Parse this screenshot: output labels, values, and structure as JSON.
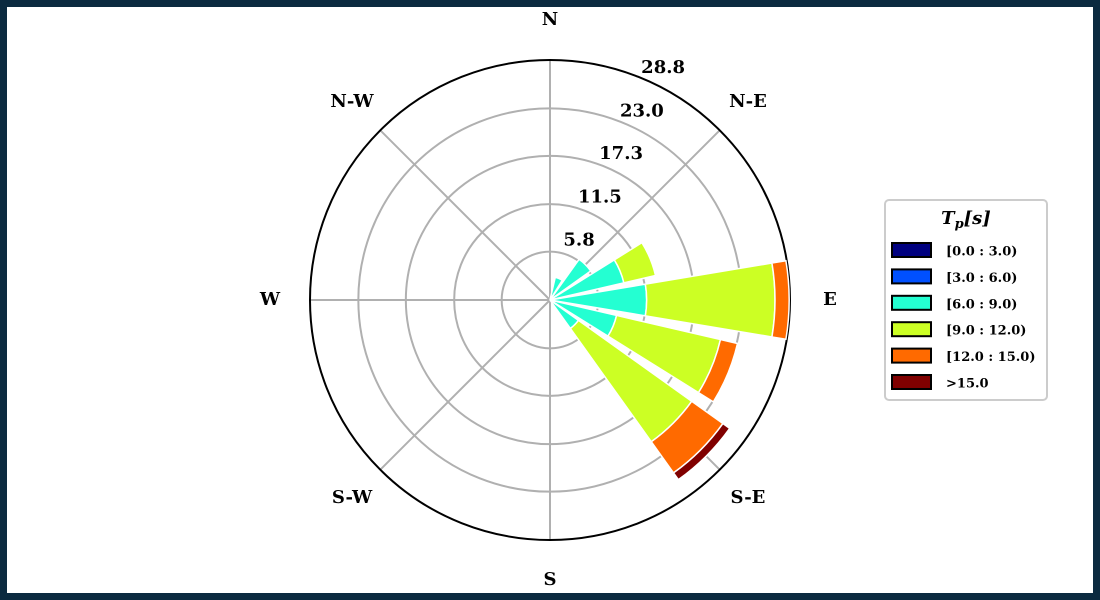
{
  "chart_data": {
    "type": "polar-stacked-bar",
    "categories": [
      "N",
      null,
      "N-E",
      null,
      "E",
      null,
      "S-E",
      null,
      "S",
      null,
      "S-W",
      null,
      "W",
      null,
      "N-W",
      null
    ],
    "ylim": [
      0,
      28.8
    ],
    "yticks": [
      5.8,
      11.5,
      17.3,
      {
        "value": 23.0,
        "label": "23.0"
      },
      28.8
    ],
    "grid": true,
    "legend_title": {
      "symbol": "T",
      "subscript": "p",
      "unit": "[s]"
    },
    "legend_position": "right",
    "series": [
      {
        "name": "[0.0 : 3.0)",
        "color": "#00007f",
        "values": [
          0,
          0,
          0,
          0,
          0,
          0,
          0,
          0,
          0,
          0,
          0,
          0,
          0,
          0,
          0,
          0
        ]
      },
      {
        "name": "[3.0 : 6.0)",
        "color": "#0050ff",
        "values": [
          0,
          0,
          0,
          0,
          0,
          0,
          0,
          0,
          0,
          0,
          0,
          0,
          0,
          0,
          0,
          0
        ]
      },
      {
        "name": "[6.0 : 9.0)",
        "color": "#24ffd2",
        "values": [
          0,
          2.8,
          6.0,
          9.1,
          11.6,
          8.2,
          4.2,
          0,
          0,
          0,
          0,
          0,
          0,
          0,
          0,
          0
        ]
      },
      {
        "name": "[9.0 : 12.0)",
        "color": "#ccff24",
        "values": [
          0,
          0,
          0,
          3.9,
          15.4,
          12.8,
          16.7,
          0,
          0,
          0,
          0,
          0,
          0,
          0,
          0,
          0
        ]
      },
      {
        "name": "[12.0 : 15.0)",
        "color": "#ff6a00",
        "values": [
          0,
          0,
          0,
          0,
          1.7,
          2.1,
          4.6,
          0,
          0,
          0,
          0,
          0,
          0,
          0,
          0,
          0
        ]
      },
      {
        "name": ">15.0",
        "color": "#800000",
        "values": [
          0,
          0,
          0,
          0,
          0,
          0,
          1.0,
          0,
          0,
          0,
          0,
          0,
          0,
          0,
          0,
          0
        ]
      }
    ]
  }
}
